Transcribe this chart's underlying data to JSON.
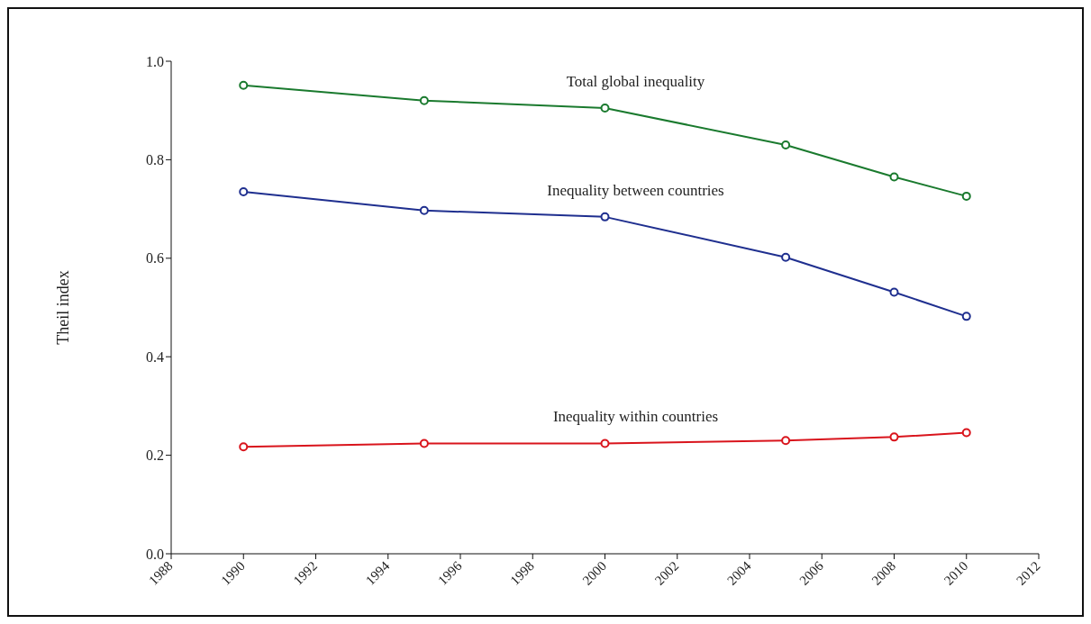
{
  "chart_data": {
    "type": "line",
    "ylabel": "Theil index",
    "x": [
      1990,
      1995,
      2000,
      2005,
      2008,
      2010
    ],
    "series": [
      {
        "name": "Total global inequality",
        "color": "#1a7a2e",
        "values": [
          0.951,
          0.92,
          0.905,
          0.83,
          0.765,
          0.726
        ]
      },
      {
        "name": "Inequality between countries",
        "color": "#1f2f8f",
        "values": [
          0.735,
          0.697,
          0.684,
          0.602,
          0.531,
          0.482
        ]
      },
      {
        "name": "Inequality within countries",
        "color": "#d9141c",
        "values": [
          0.217,
          0.224,
          0.224,
          0.23,
          0.237,
          0.246
        ]
      }
    ],
    "xlim": [
      1988,
      2012
    ],
    "xticks": [
      1988,
      1990,
      1992,
      1994,
      1996,
      1998,
      2000,
      2002,
      2004,
      2006,
      2008,
      2010,
      2012
    ],
    "ylim": [
      0,
      1
    ],
    "yticks": [
      {
        "value": 0,
        "label": "0.0"
      },
      {
        "value": 0.2,
        "label": "0.2"
      },
      {
        "value": 0.4,
        "label": "0.4"
      },
      {
        "value": 0.6,
        "label": "0.6"
      },
      {
        "value": 0.8,
        "label": "0.8"
      },
      {
        "value": 1,
        "label": "1.0"
      }
    ],
    "grid": false,
    "legend": false,
    "marker": "circle",
    "line_style": "solid"
  }
}
